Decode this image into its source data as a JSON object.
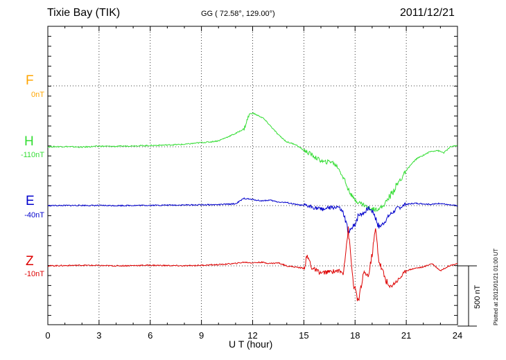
{
  "header": {
    "station": "Tixie Bay (TIK)",
    "coordinates": "GG ( 72.58°, 129.00°)",
    "date": "2011/12/21"
  },
  "side_note": "Plotted at 2012/01/21 01:00 UT",
  "scale_label": "500 nT",
  "chart_data": {
    "type": "line",
    "xlabel": "U T (hour)",
    "xlim": [
      0,
      24
    ],
    "xticks": [
      0,
      3,
      6,
      9,
      12,
      15,
      18,
      21,
      24
    ],
    "grid": true,
    "y_scale_nT_per_bar": 500,
    "series": [
      {
        "name": "F",
        "offset": "0nT",
        "color": "#ffa500",
        "x": [],
        "values": []
      },
      {
        "name": "H",
        "offset": "-110nT",
        "color": "#33dd33",
        "x": [
          0,
          1,
          2,
          3,
          4,
          5,
          6,
          7,
          8,
          9,
          9.5,
          10,
          10.5,
          11,
          11.5,
          11.8,
          12,
          12.3,
          12.6,
          13,
          13.5,
          14,
          14.5,
          15,
          15.4,
          15.8,
          16.2,
          16.6,
          17,
          17.3,
          17.6,
          17.9,
          18.2,
          18.5,
          18.8,
          19.2,
          19.6,
          20,
          20.4,
          20.8,
          21.2,
          21.6,
          22,
          22.4,
          22.8,
          23.2,
          23.6,
          24
        ],
        "values": [
          0,
          2,
          -3,
          5,
          3,
          8,
          10,
          15,
          20,
          35,
          40,
          50,
          80,
          110,
          150,
          270,
          280,
          260,
          240,
          180,
          100,
          40,
          20,
          -30,
          -60,
          -100,
          -130,
          -120,
          -170,
          -250,
          -350,
          -430,
          -460,
          -480,
          -510,
          -520,
          -500,
          -420,
          -330,
          -240,
          -160,
          -100,
          -70,
          -40,
          -30,
          -50,
          0,
          10
        ]
      },
      {
        "name": "E",
        "offset": "-40nT",
        "color": "#0000cc",
        "x": [
          0,
          2,
          4,
          6,
          8,
          10,
          11,
          11.5,
          12,
          12.5,
          13,
          13.5,
          14,
          14.5,
          15,
          15.5,
          16,
          16.5,
          17,
          17.3,
          17.6,
          17.9,
          18.2,
          18.5,
          18.8,
          19.1,
          19.4,
          19.7,
          20,
          20.5,
          21,
          21.5,
          22,
          22.5,
          23,
          23.5,
          24
        ],
        "values": [
          0,
          2,
          0,
          3,
          5,
          8,
          15,
          60,
          50,
          40,
          45,
          30,
          25,
          10,
          0,
          -10,
          -30,
          -20,
          -10,
          -60,
          -220,
          -180,
          -80,
          -60,
          -20,
          -60,
          -180,
          -140,
          -80,
          -20,
          10,
          20,
          15,
          10,
          20,
          5,
          0
        ]
      },
      {
        "name": "Z",
        "offset": "-10nT",
        "color": "#dd0000",
        "x": [
          0,
          2,
          4,
          6,
          8,
          10,
          11,
          11.5,
          12,
          12.5,
          13,
          13.5,
          14,
          14.5,
          15,
          15.2,
          15.5,
          16,
          16.5,
          17,
          17.3,
          17.6,
          17.9,
          18.2,
          18.5,
          18.8,
          19,
          19.2,
          19.4,
          19.7,
          20,
          20.5,
          21,
          21.5,
          22,
          22.5,
          23,
          23.5,
          24
        ],
        "values": [
          0,
          5,
          0,
          5,
          0,
          10,
          20,
          30,
          25,
          30,
          20,
          25,
          0,
          -10,
          -20,
          80,
          -20,
          -60,
          -50,
          -40,
          -60,
          300,
          -150,
          -300,
          -60,
          -80,
          100,
          310,
          40,
          -80,
          -180,
          -120,
          -40,
          -20,
          -10,
          20,
          -40,
          0,
          20
        ]
      }
    ]
  }
}
